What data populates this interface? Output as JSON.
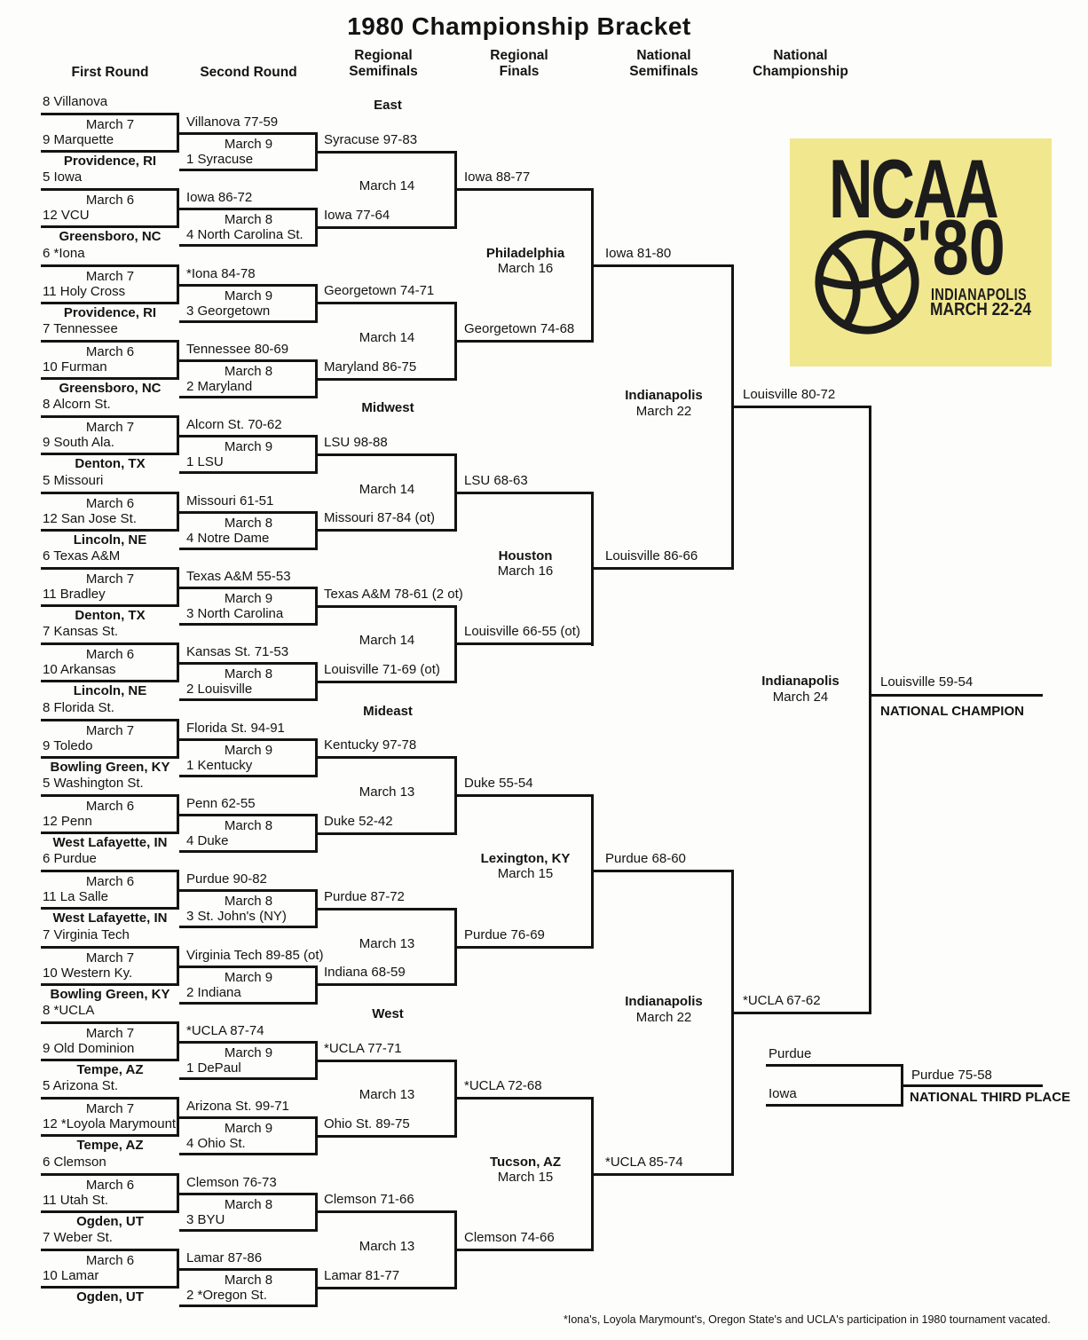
{
  "title": "1980 Championship Bracket",
  "column_headers": [
    {
      "line1": "First Round"
    },
    {
      "line1": "Second Round"
    },
    {
      "line1": "Regional",
      "line2": "Semifinals"
    },
    {
      "line1": "Regional",
      "line2": "Finals"
    },
    {
      "line1": "National",
      "line2": "Semifinals"
    },
    {
      "line1": "National",
      "line2": "Championship"
    }
  ],
  "logo": {
    "org": "NCAA",
    "year": "'80",
    "city": "INDIANAPOLIS",
    "dates": "MARCH 22-24",
    "bg_color": "#f1e78f",
    "fg_color": "#1c1c1c"
  },
  "regions": [
    {
      "name": "East",
      "semifinal_dates": [
        "March 14",
        "March 14"
      ],
      "semifinal_winners": [
        "Iowa 88-77",
        "Georgetown 74-68"
      ],
      "final_site": "Philadelphia",
      "final_date": "March 16",
      "final_winner": "Iowa 81-80",
      "games": [
        {
          "team1": "8 Villanova",
          "date": "March 7",
          "team2": "9 Marquette",
          "site": "Providence, RI",
          "first_round_winner": "Villanova 77-59",
          "second_round_date": "March 9",
          "bye_seed": "1 Syracuse",
          "second_round_winner": "Syracuse 97-83"
        },
        {
          "team1": "5 Iowa",
          "date": "March 6",
          "team2": "12 VCU",
          "site": "Greensboro, NC",
          "first_round_winner": "Iowa 86-72",
          "second_round_date": "March 8",
          "bye_seed": "4 North Carolina St.",
          "second_round_winner": "Iowa 77-64"
        },
        {
          "team1": "6 *Iona",
          "date": "March 7",
          "team2": "11 Holy Cross",
          "site": "Providence, RI",
          "first_round_winner": "*Iona 84-78",
          "second_round_date": "March 9",
          "bye_seed": "3 Georgetown",
          "second_round_winner": "Georgetown 74-71"
        },
        {
          "team1": "7 Tennessee",
          "date": "March 6",
          "team2": "10 Furman",
          "site": "Greensboro, NC",
          "first_round_winner": "Tennessee 80-69",
          "second_round_date": "March 8",
          "bye_seed": "2 Maryland",
          "second_round_winner": "Maryland 86-75"
        }
      ]
    },
    {
      "name": "Midwest",
      "semifinal_dates": [
        "March 14",
        "March 14"
      ],
      "semifinal_winners": [
        "LSU 68-63",
        "Louisville 66-55 (ot)"
      ],
      "final_site": "Houston",
      "final_date": "March 16",
      "final_winner": "Louisville 86-66",
      "games": [
        {
          "team1": "8 Alcorn St.",
          "date": "March 7",
          "team2": "9 South Ala.",
          "site": "Denton, TX",
          "first_round_winner": "Alcorn St. 70-62",
          "second_round_date": "March 9",
          "bye_seed": "1 LSU",
          "second_round_winner": "LSU 98-88"
        },
        {
          "team1": "5 Missouri",
          "date": "March 6",
          "team2": "12 San Jose St.",
          "site": "Lincoln, NE",
          "first_round_winner": "Missouri 61-51",
          "second_round_date": "March 8",
          "bye_seed": "4 Notre Dame",
          "second_round_winner": "Missouri 87-84 (ot)"
        },
        {
          "team1": "6 Texas A&M",
          "date": "March 7",
          "team2": "11 Bradley",
          "site": "Denton, TX",
          "first_round_winner": "Texas A&M 55-53",
          "second_round_date": "March 9",
          "bye_seed": "3 North Carolina",
          "second_round_winner": "Texas A&M 78-61 (2 ot)"
        },
        {
          "team1": "7 Kansas St.",
          "date": "March 6",
          "team2": "10 Arkansas",
          "site": "Lincoln, NE",
          "first_round_winner": "Kansas St. 71-53",
          "second_round_date": "March 8",
          "bye_seed": "2 Louisville",
          "second_round_winner": "Louisville 71-69 (ot)"
        }
      ]
    },
    {
      "name": "Mideast",
      "semifinal_dates": [
        "March 13",
        "March 13"
      ],
      "semifinal_winners": [
        "Duke 55-54",
        "Purdue 76-69"
      ],
      "final_site": "Lexington, KY",
      "final_date": "March 15",
      "final_winner": "Purdue 68-60",
      "games": [
        {
          "team1": "8 Florida St.",
          "date": "March 7",
          "team2": "9 Toledo",
          "site": "Bowling Green, KY",
          "first_round_winner": "Florida St. 94-91",
          "second_round_date": "March 9",
          "bye_seed": "1 Kentucky",
          "second_round_winner": "Kentucky 97-78"
        },
        {
          "team1": "5 Washington St.",
          "date": "March 6",
          "team2": "12 Penn",
          "site": "West Lafayette, IN",
          "first_round_winner": "Penn 62-55",
          "second_round_date": "March 8",
          "bye_seed": "4 Duke",
          "second_round_winner": "Duke 52-42"
        },
        {
          "team1": "6 Purdue",
          "date": "March 6",
          "team2": "11 La Salle",
          "site": "West Lafayette, IN",
          "first_round_winner": "Purdue 90-82",
          "second_round_date": "March 8",
          "bye_seed": "3 St. John's (NY)",
          "second_round_winner": "Purdue 87-72"
        },
        {
          "team1": "7 Virginia Tech",
          "date": "March 7",
          "team2": "10 Western Ky.",
          "site": "Bowling Green, KY",
          "first_round_winner": "Virginia Tech 89-85 (ot)",
          "second_round_date": "March 9",
          "bye_seed": "2 Indiana",
          "second_round_winner": "Indiana 68-59"
        }
      ]
    },
    {
      "name": "West",
      "semifinal_dates": [
        "March 13",
        "March 13"
      ],
      "semifinal_winners": [
        "*UCLA 72-68",
        "Clemson 74-66"
      ],
      "final_site": "Tucson, AZ",
      "final_date": "March 15",
      "final_winner": "*UCLA 85-74",
      "games": [
        {
          "team1": "8 *UCLA",
          "date": "March 7",
          "team2": "9 Old Dominion",
          "site": "Tempe, AZ",
          "first_round_winner": "*UCLA 87-74",
          "second_round_date": "March 9",
          "bye_seed": "1 DePaul",
          "second_round_winner": "*UCLA 77-71"
        },
        {
          "team1": "5 Arizona St.",
          "date": "March 7",
          "team2": "12 *Loyola Marymount",
          "site": "Tempe, AZ",
          "first_round_winner": "Arizona St. 99-71",
          "second_round_date": "March 9",
          "bye_seed": "4 Ohio St.",
          "second_round_winner": "Ohio St. 89-75"
        },
        {
          "team1": "6 Clemson",
          "date": "March 6",
          "team2": "11 Utah St.",
          "site": "Ogden, UT",
          "first_round_winner": "Clemson 76-73",
          "second_round_date": "March 8",
          "bye_seed": "3 BYU",
          "second_round_winner": "Clemson 71-66"
        },
        {
          "team1": "7 Weber St.",
          "date": "March 6",
          "team2": "10 Lamar",
          "site": "Ogden, UT",
          "first_round_winner": "Lamar 87-86",
          "second_round_date": "March 8",
          "bye_seed": "2 *Oregon St.",
          "second_round_winner": "Lamar 81-77"
        }
      ]
    }
  ],
  "national_semifinals": [
    {
      "site": "Indianapolis",
      "date": "March 22",
      "winner": "Louisville 80-72"
    },
    {
      "site": "Indianapolis",
      "date": "March 22",
      "winner": "*UCLA 67-62"
    }
  ],
  "championship": {
    "site": "Indianapolis",
    "date": "March 24",
    "winner": "Louisville 59-54",
    "label": "NATIONAL CHAMPION"
  },
  "third_place": {
    "team1": "Purdue",
    "team2": "Iowa",
    "winner": "Purdue 75-58",
    "label": "NATIONAL THIRD PLACE"
  },
  "footnote": "*Iona's, Loyola Marymount's, Oregon State's and UCLA's participation in 1980 tournament vacated."
}
